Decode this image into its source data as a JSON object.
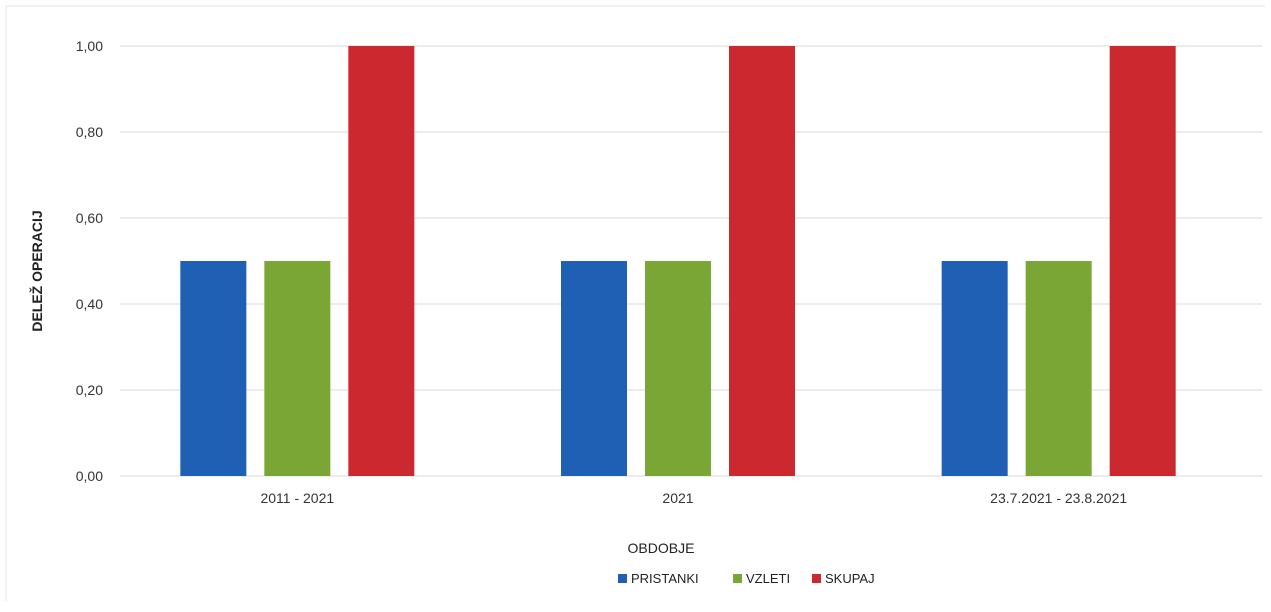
{
  "chart_data": {
    "type": "bar",
    "title": "",
    "xlabel": "OBDOBJE",
    "ylabel": "DELEŽ OPERACIJ",
    "categories": [
      "2011 - 2021",
      "2021",
      "23.7.2021 - 23.8.2021"
    ],
    "series": [
      {
        "name": "PRISTANKI",
        "color": "#1f5fb4",
        "values": [
          0.5,
          0.5,
          0.5
        ]
      },
      {
        "name": "VZLETI",
        "color": "#79a635",
        "values": [
          0.5,
          0.5,
          0.5
        ]
      },
      {
        "name": "SKUPAJ",
        "color": "#cc2830",
        "values": [
          1.0,
          1.0,
          1.0
        ]
      }
    ],
    "y_ticks": [
      "0,00",
      "0,20",
      "0,40",
      "0,60",
      "0,80",
      "1,00"
    ],
    "y_tick_values": [
      0,
      0.2,
      0.4,
      0.6,
      0.8,
      1.0
    ],
    "ylim": [
      0,
      1.0
    ],
    "grid": true,
    "legend_position": "bottom"
  }
}
